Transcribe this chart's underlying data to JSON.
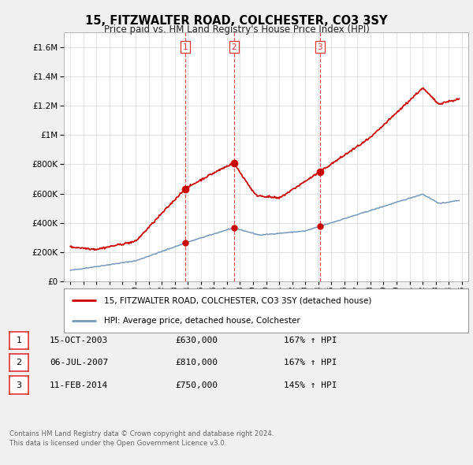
{
  "title": "15, FITZWALTER ROAD, COLCHESTER, CO3 3SY",
  "subtitle": "Price paid vs. HM Land Registry's House Price Index (HPI)",
  "legend_line1": "15, FITZWALTER ROAD, COLCHESTER, CO3 3SY (detached house)",
  "legend_line2": "HPI: Average price, detached house, Colchester",
  "transactions": [
    {
      "num": 1,
      "date": "15-OCT-2003",
      "price": 630000,
      "hpi_pct": "167%",
      "direction": "↑"
    },
    {
      "num": 2,
      "date": "06-JUL-2007",
      "price": 810000,
      "hpi_pct": "167%",
      "direction": "↑"
    },
    {
      "num": 3,
      "date": "11-FEB-2014",
      "price": 750000,
      "hpi_pct": "145%",
      "direction": "↑"
    }
  ],
  "footnote1": "Contains HM Land Registry data © Crown copyright and database right 2024.",
  "footnote2": "This data is licensed under the Open Government Licence v3.0.",
  "price_color": "#cc0000",
  "hpi_color": "#7799bb",
  "vline_color": "#dd3333",
  "ylim": [
    0,
    1700000
  ],
  "yticks": [
    0,
    200000,
    400000,
    600000,
    800000,
    1000000,
    1200000,
    1400000,
    1600000
  ],
  "xlim_start": 1994.5,
  "xlim_end": 2025.5,
  "background_color": "#f0f0f0",
  "plot_bg_color": "#ffffff"
}
